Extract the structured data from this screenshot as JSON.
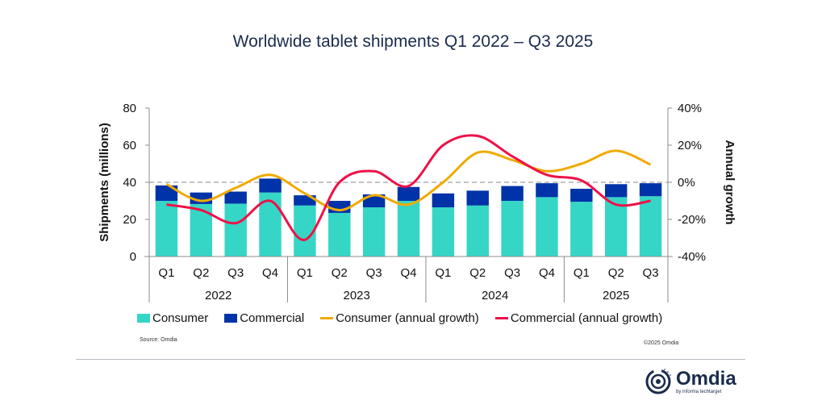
{
  "chart_data": {
    "type": "bar",
    "title": "Worldwide tablet shipments Q1 2022 – Q3 2025",
    "ylabel": "Shipments (millions)",
    "y2label": "Annual growth",
    "ylim": [
      0,
      80
    ],
    "y2lim": [
      -40,
      40
    ],
    "yticks": [
      "0",
      "20",
      "40",
      "60",
      "80"
    ],
    "y2ticks": [
      "-40%",
      "-20%",
      "0%",
      "20%",
      "40%"
    ],
    "categories": [
      "Q1",
      "Q2",
      "Q3",
      "Q4",
      "Q1",
      "Q2",
      "Q3",
      "Q4",
      "Q1",
      "Q2",
      "Q3",
      "Q4",
      "Q1",
      "Q2",
      "Q3"
    ],
    "years": [
      {
        "label": "2022",
        "span": 4
      },
      {
        "label": "2023",
        "span": 4
      },
      {
        "label": "2024",
        "span": 4
      },
      {
        "label": "2025",
        "span": 3
      }
    ],
    "series": [
      {
        "name": "Consumer",
        "type": "bar",
        "stack": true,
        "color": "#36d6c6",
        "values": [
          30,
          28.3,
          28.5,
          34.5,
          27.5,
          23.5,
          26.5,
          30,
          26.5,
          27.5,
          30,
          32,
          29.5,
          32,
          32.5
        ]
      },
      {
        "name": "Commercial",
        "type": "bar",
        "stack": true,
        "color": "#0033a8",
        "values": [
          8.3,
          6.2,
          6.5,
          7.5,
          5.5,
          6.5,
          7,
          7.5,
          7.5,
          8,
          8,
          7.5,
          7,
          7,
          7
        ]
      },
      {
        "name": "Consumer (annual growth)",
        "type": "line",
        "axis": "y2",
        "color": "#f0aa00",
        "values": [
          -1,
          -10,
          -3,
          4,
          -6,
          -15,
          -7,
          -12,
          0,
          16,
          12,
          6,
          10,
          17,
          9.5
        ]
      },
      {
        "name": "Commercial (annual growth)",
        "type": "line",
        "axis": "y2",
        "color": "#ee1148",
        "values": [
          -12,
          -15,
          -22,
          -10,
          -31,
          0,
          6,
          -2,
          20,
          25,
          14,
          4,
          1,
          -12,
          -10
        ]
      }
    ],
    "reference_line": {
      "y2": 0,
      "style": "dashed"
    },
    "legend": "bottom"
  },
  "footer": {
    "source": "Source: Omdia",
    "copyright": "©2025 Omdia",
    "logo_name": "Omdia",
    "logo_tagline": "by informa techtarget"
  }
}
